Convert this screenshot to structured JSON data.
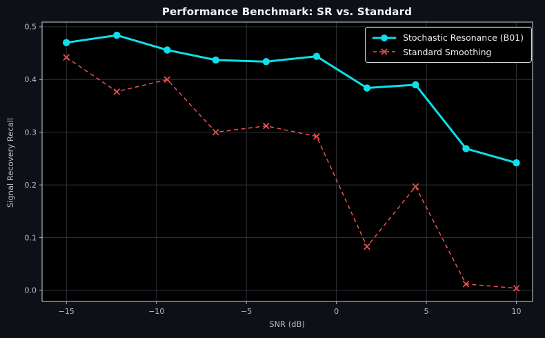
{
  "chart_data": {
    "type": "line",
    "title": "Performance Benchmark: SR vs. Standard",
    "xlabel": "SNR (dB)",
    "ylabel": "Signal Recovery Recall",
    "x": [
      -15.0,
      -12.2,
      -9.4,
      -6.7,
      -3.9,
      -1.1,
      1.7,
      4.4,
      7.2,
      10.0
    ],
    "series": [
      {
        "id": "sr",
        "name": "Stochastic Resonance (B01)",
        "color": "#0ce0ea",
        "line_style": "solid",
        "marker": "circle",
        "values": [
          0.47,
          0.484,
          0.456,
          0.437,
          0.434,
          0.444,
          0.384,
          0.39,
          0.269,
          0.242
        ]
      },
      {
        "id": "std",
        "name": "Standard Smoothing",
        "color": "#ef5350",
        "line_style": "dashed",
        "marker": "x",
        "values": [
          0.442,
          0.377,
          0.4,
          0.3,
          0.312,
          0.292,
          0.083,
          0.197,
          0.012,
          0.004
        ]
      }
    ],
    "xticks": {
      "values": [
        -15,
        -10,
        -5,
        0,
        5,
        10
      ],
      "labels": [
        "−15",
        "−10",
        "−5",
        "0",
        "5",
        "10"
      ]
    },
    "yticks": {
      "values": [
        0.0,
        0.1,
        0.2,
        0.3,
        0.4,
        0.5
      ],
      "labels": [
        "0.0",
        "0.1",
        "0.2",
        "0.3",
        "0.4",
        "0.5"
      ]
    },
    "xlim": [
      -16.35,
      10.9
    ],
    "ylim": [
      -0.021,
      0.509
    ],
    "grid": true,
    "legend_position": "upper right",
    "colors": {
      "figure_bg": "#0d1117",
      "plot_bg": "#000000",
      "grid": "#2e3237",
      "spine": "#aab2b9",
      "tick_label": "#b7bdc4",
      "title": "#f2f5f7",
      "legend_bg": "#000000",
      "legend_border": "#d3d8dc",
      "legend_text": "#eceff1"
    }
  }
}
